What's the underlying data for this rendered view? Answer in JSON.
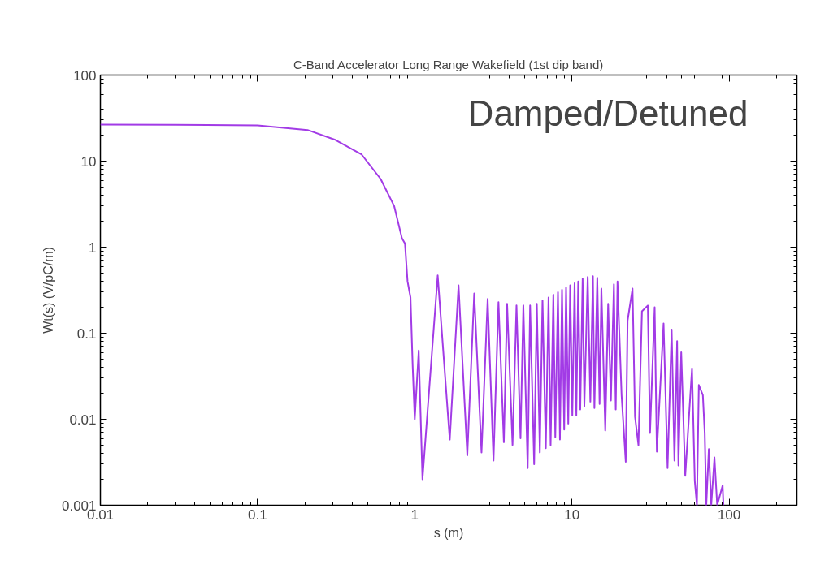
{
  "chart_data": {
    "type": "line",
    "title": "C-Band Accelerator Long Range Wakefield (1st dip band)",
    "xlabel": "s (m)",
    "ylabel": "Wt(s) (V/pC/m)",
    "annotations": [
      "Damped/Detuned"
    ],
    "log": "xy",
    "grid": false,
    "marker": "none",
    "line_style": "solid",
    "xlim": [
      0.01,
      270
    ],
    "ylim": [
      0.001,
      100
    ],
    "xticks": [
      0.01,
      0.1,
      1,
      10,
      100
    ],
    "yticks": [
      0.001,
      0.01,
      0.1,
      1,
      10,
      100
    ],
    "series": [
      {
        "color": "#a23be6",
        "x": [
          0.01,
          0.03,
          0.1,
          0.208,
          0.309,
          0.46,
          0.607,
          0.74,
          0.83,
          0.867,
          0.9,
          0.94,
          0.97,
          1.0,
          1.06,
          1.12,
          1.4,
          1.67,
          1.9,
          2.16,
          2.39,
          2.66,
          2.91,
          3.17,
          3.41,
          3.69,
          3.87,
          4.19,
          4.44,
          4.71,
          4.91,
          5.23,
          5.42,
          5.75,
          5.98,
          6.25,
          6.5,
          6.82,
          7.1,
          7.32,
          7.62,
          7.84,
          8.15,
          8.39,
          8.65,
          8.93,
          9.18,
          9.48,
          9.75,
          10.06,
          10.4,
          10.67,
          10.97,
          11.3,
          11.7,
          12.0,
          12.6,
          13.1,
          13.6,
          13.9,
          14.5,
          15.0,
          15.4,
          16.3,
          17.0,
          17.7,
          18.5,
          19.0,
          19.5,
          20.7,
          22.0,
          22.6,
          24.3,
          25.2,
          26.5,
          27.9,
          30.4,
          31.4,
          33.6,
          34.7,
          38.3,
          40.6,
          43.1,
          44.9,
          46.7,
          47.6,
          49.6,
          52.6,
          58.1,
          60.5,
          62.4,
          64.2,
          68.1,
          70,
          71.6,
          74.3,
          77,
          80.7,
          84,
          91,
          92
        ],
        "values": [
          26.6,
          26.5,
          26,
          23,
          17.8,
          11.9,
          6.2,
          3.0,
          1.26,
          1.1,
          0.4,
          0.26,
          0.042,
          0.01,
          0.063,
          0.002,
          0.47,
          0.0058,
          0.36,
          0.0038,
          0.29,
          0.0041,
          0.25,
          0.0033,
          0.23,
          0.0054,
          0.22,
          0.005,
          0.21,
          0.006,
          0.21,
          0.0027,
          0.21,
          0.003,
          0.22,
          0.0041,
          0.24,
          0.0046,
          0.26,
          0.005,
          0.28,
          0.0062,
          0.3,
          0.0058,
          0.32,
          0.0076,
          0.34,
          0.0089,
          0.36,
          0.011,
          0.38,
          0.011,
          0.4,
          0.013,
          0.43,
          0.0142,
          0.45,
          0.016,
          0.46,
          0.0135,
          0.44,
          0.015,
          0.33,
          0.0074,
          0.22,
          0.0165,
          0.37,
          0.013,
          0.4,
          0.019,
          0.0032,
          0.14,
          0.33,
          0.0107,
          0.005,
          0.18,
          0.21,
          0.0069,
          0.2,
          0.0042,
          0.13,
          0.0027,
          0.11,
          0.0033,
          0.081,
          0.0029,
          0.06,
          0.0022,
          0.039,
          0.0019,
          0.001,
          0.025,
          0.019,
          0.0069,
          0.001,
          0.0045,
          0.001,
          0.0036,
          0.001,
          0.0017,
          0.001
        ]
      }
    ]
  }
}
